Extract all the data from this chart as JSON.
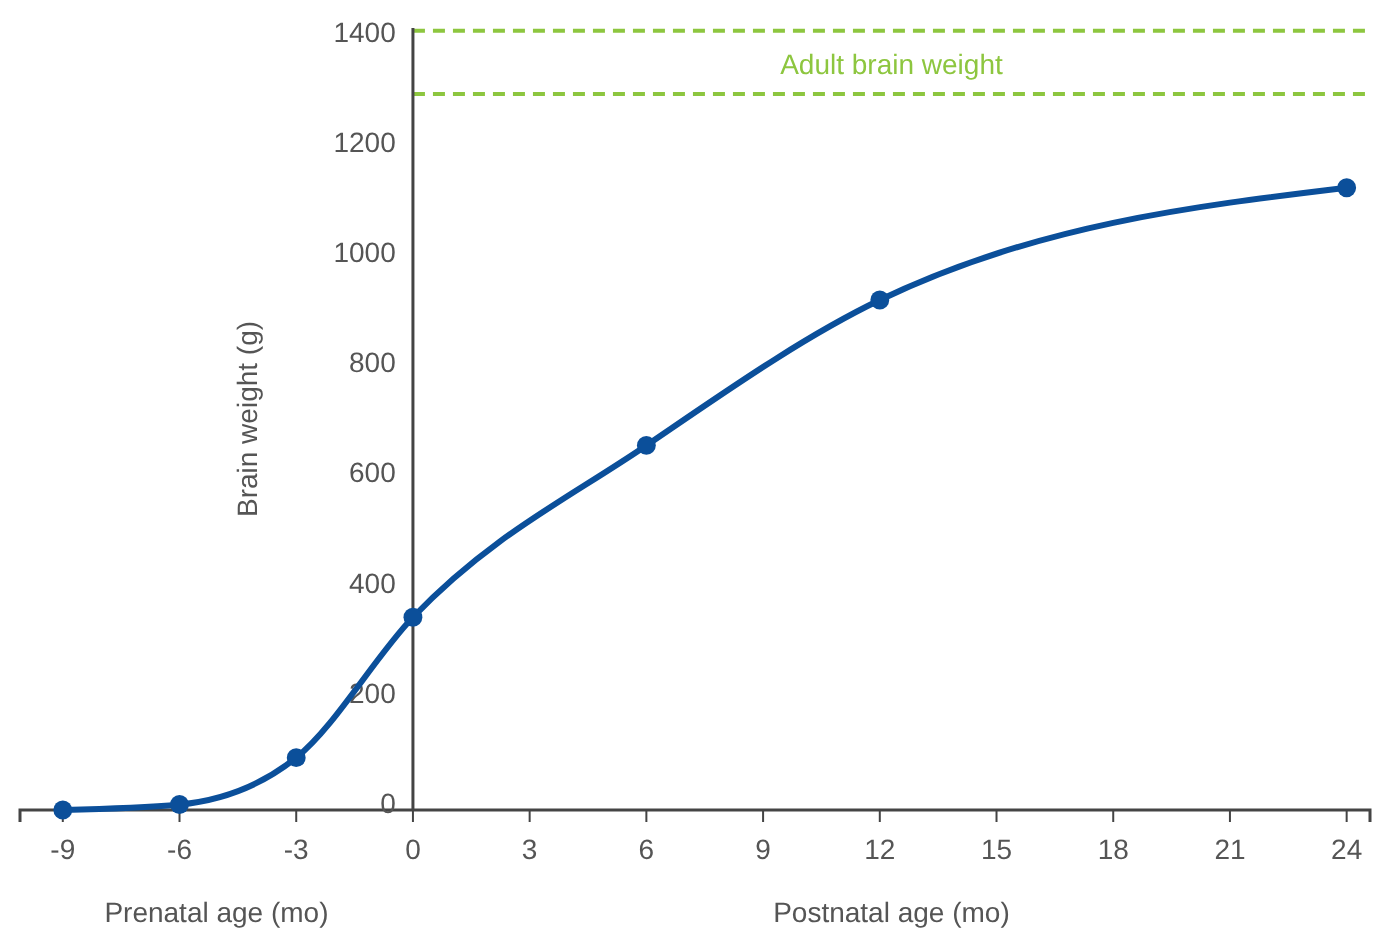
{
  "chart_data": {
    "type": "line",
    "xlabel": "Postnatal age (mo)",
    "ylabel": "Brain weight (g)",
    "annotations": [
      "Prenatal age (mo)"
    ],
    "x": [
      -9,
      -6,
      -3,
      0,
      6,
      12,
      24
    ],
    "series": [
      {
        "color": "#0b4f9a",
        "values": [
          0,
          10,
          95,
          350,
          662,
          926,
          1130
        ]
      }
    ],
    "xlim": [
      -10.1,
      24.6
    ],
    "xticks": [
      -9,
      -6,
      -3,
      0,
      3,
      6,
      9,
      12,
      15,
      18,
      21,
      24
    ],
    "ylim": [
      0,
      1420
    ],
    "yticks": [
      0,
      200,
      400,
      600,
      800,
      1000,
      1200,
      1400
    ],
    "ref_lines": [
      {
        "axis": "y",
        "value": 1415,
        "color": "#8dc63f",
        "line_style": "dashed"
      },
      {
        "axis": "y",
        "value": 1300,
        "label": "Adult brain weight",
        "color": "#8dc63f",
        "line_style": "dashed"
      }
    ],
    "marker": "circle",
    "line_style": "solid"
  }
}
